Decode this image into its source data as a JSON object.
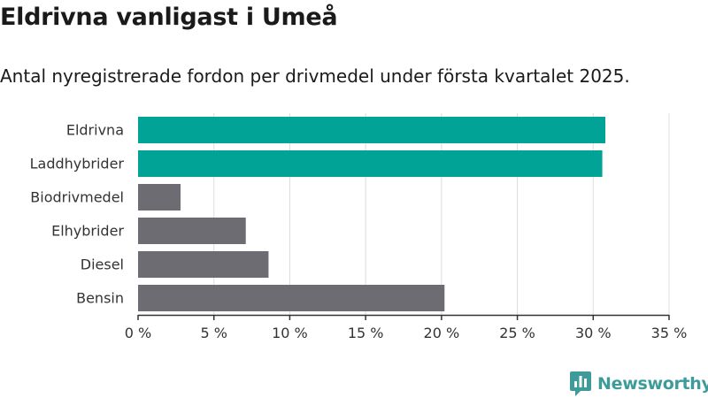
{
  "header": {
    "title": "Eldrivna vanligast i Umeå",
    "subtitle": "Antal nyregistrerade fordon per drivmedel under första kvartalet 2025."
  },
  "brand": {
    "name": "Newsworthy",
    "icon": "newsworthy-logo-icon",
    "color": "#3d9c9a"
  },
  "colors": {
    "highlight": "#00a396",
    "default": "#6d6c72",
    "grid": "#dcdcdc",
    "axis": "#333333"
  },
  "chart_data": {
    "type": "bar",
    "orientation": "horizontal",
    "title": "Eldrivna vanligast i Umeå",
    "subtitle": "Antal nyregistrerade fordon per drivmedel under första kvartalet 2025.",
    "xlabel": "",
    "ylabel": "",
    "categories": [
      "Eldrivna",
      "Laddhybrider",
      "Biodrivmedel",
      "Elhybrider",
      "Diesel",
      "Bensin"
    ],
    "values": [
      30.8,
      30.6,
      2.8,
      7.1,
      8.6,
      20.2
    ],
    "highlighted": [
      true,
      true,
      false,
      false,
      false,
      false
    ],
    "xlim": [
      0,
      35
    ],
    "xticks": [
      0,
      5,
      10,
      15,
      20,
      25,
      30,
      35
    ],
    "xtick_labels": [
      "0 %",
      "5 %",
      "10 %",
      "15 %",
      "20 %",
      "25 %",
      "30 %",
      "35 %"
    ],
    "grid": "vertical",
    "legend": "none"
  }
}
